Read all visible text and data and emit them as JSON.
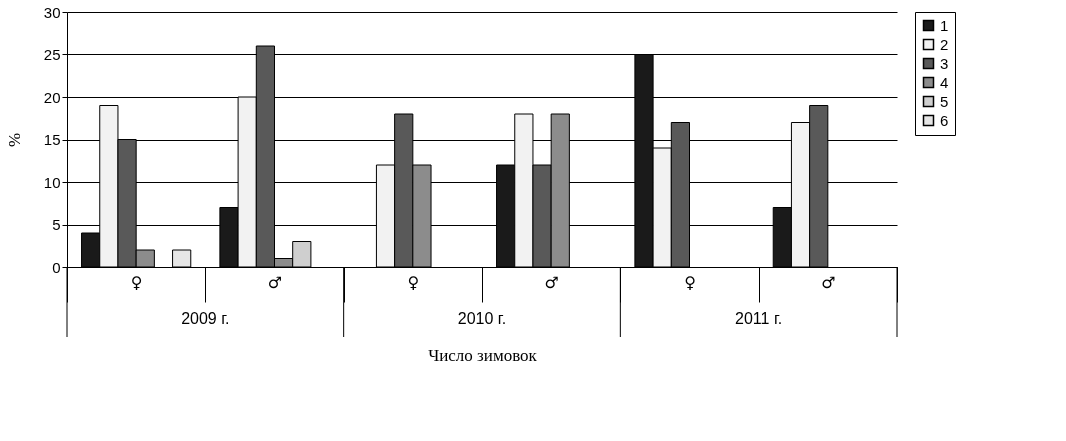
{
  "chart_data": {
    "type": "bar",
    "xlabel": "Число зимовок",
    "ylabel": "%",
    "categories": [
      "♀",
      "♂",
      "♀",
      "♂",
      "♀",
      "♂"
    ],
    "series": [
      {
        "name": "1",
        "color": "#1a1a1a",
        "values": [
          4,
          7,
          null,
          12,
          25,
          7
        ]
      },
      {
        "name": "2",
        "color": "#f2f2f2",
        "values": [
          19,
          20,
          12,
          18,
          14,
          17
        ]
      },
      {
        "name": "3",
        "color": "#595959",
        "values": [
          15,
          26,
          18,
          12,
          17,
          19
        ]
      },
      {
        "name": "4",
        "color": "#8c8c8c",
        "values": [
          2,
          1,
          12,
          18,
          null,
          null
        ]
      },
      {
        "name": "5",
        "color": "#cfcfcf",
        "values": [
          null,
          3,
          null,
          null,
          null,
          null
        ]
      },
      {
        "name": "6",
        "color": "#e6e6e6",
        "values": [
          2,
          null,
          null,
          null,
          null,
          null
        ]
      }
    ],
    "annotations": [
      "2009 г.",
      "2010 г.",
      "2011 г."
    ],
    "ylim": [
      0,
      30
    ],
    "yticks": [
      0,
      5,
      10,
      15,
      20,
      25,
      30
    ],
    "grid": "y",
    "legend": "right"
  }
}
